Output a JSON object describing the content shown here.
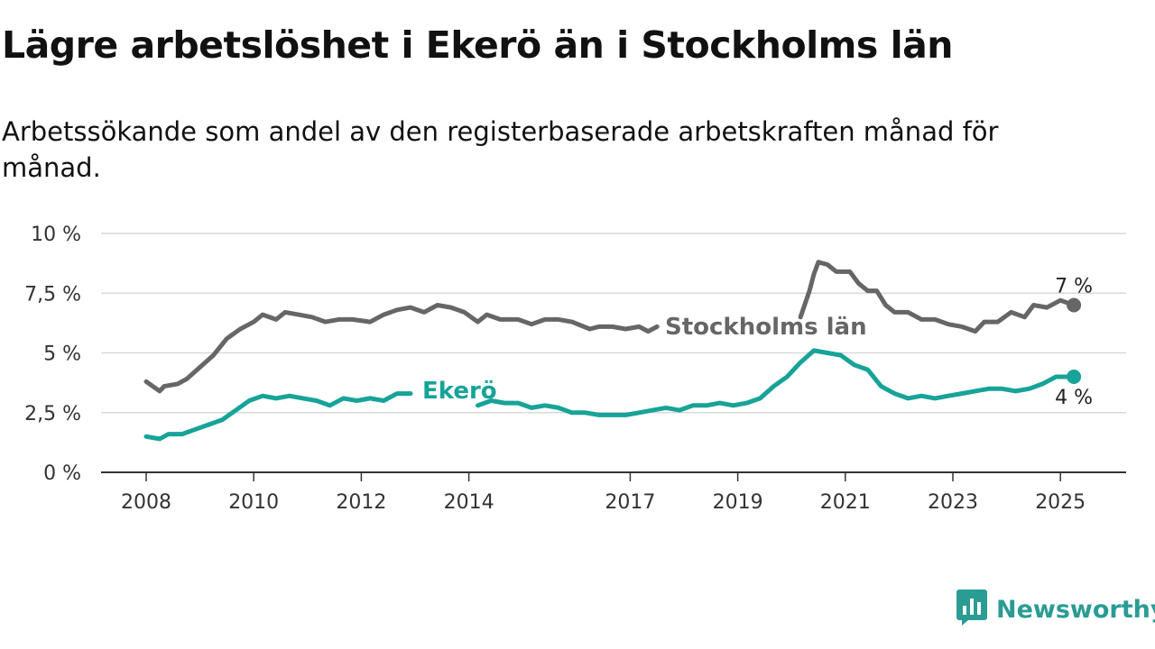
{
  "title": "Lägre arbetslöshet i Ekerö än i Stockholms län",
  "subtitle": "Arbetssökande som andel av den registerbaserade arbetskraften månad för månad.",
  "brand": {
    "name": "Newsworthy",
    "icon": "newsworthy-logo-icon",
    "color": "#2a9c94"
  },
  "chart_data": {
    "type": "line",
    "title": "Lägre arbetslöshet i Ekerö än i Stockholms län",
    "subtitle": "Arbetssökande som andel av den registerbaserade arbetskraften månad för månad.",
    "xlabel": "",
    "ylabel": "",
    "ylim": [
      0,
      10
    ],
    "xlim": [
      "2008-01",
      "2025-12"
    ],
    "grid": true,
    "legend": "inline",
    "x_ticks": [
      "2008",
      "2010",
      "2012",
      "2014",
      "2017",
      "2019",
      "2021",
      "2023",
      "2025"
    ],
    "y_ticks": [
      {
        "value": 0,
        "label": "0 %"
      },
      {
        "value": 2.5,
        "label": "2,5 %"
      },
      {
        "value": 5,
        "label": "5 %"
      },
      {
        "value": 7.5,
        "label": "7,5 %"
      },
      {
        "value": 10,
        "label": "10 %"
      }
    ],
    "series": [
      {
        "name": "Stockholms län",
        "color": "#666666",
        "end_label": "7 %",
        "points": [
          [
            "2008-01",
            3.8
          ],
          [
            "2008-04",
            3.4
          ],
          [
            "2008-05",
            3.6
          ],
          [
            "2008-08",
            3.7
          ],
          [
            "2008-10",
            3.9
          ],
          [
            "2009-01",
            4.4
          ],
          [
            "2009-04",
            4.9
          ],
          [
            "2009-07",
            5.6
          ],
          [
            "2009-10",
            6.0
          ],
          [
            "2010-01",
            6.3
          ],
          [
            "2010-03",
            6.6
          ],
          [
            "2010-06",
            6.4
          ],
          [
            "2010-08",
            6.7
          ],
          [
            "2010-11",
            6.6
          ],
          [
            "2011-02",
            6.5
          ],
          [
            "2011-05",
            6.3
          ],
          [
            "2011-08",
            6.4
          ],
          [
            "2011-11",
            6.4
          ],
          [
            "2012-03",
            6.3
          ],
          [
            "2012-06",
            6.6
          ],
          [
            "2012-09",
            6.8
          ],
          [
            "2012-12",
            6.9
          ],
          [
            "2013-03",
            6.7
          ],
          [
            "2013-06",
            7.0
          ],
          [
            "2013-09",
            6.9
          ],
          [
            "2013-12",
            6.7
          ],
          [
            "2014-03",
            6.3
          ],
          [
            "2014-05",
            6.6
          ],
          [
            "2014-08",
            6.4
          ],
          [
            "2014-12",
            6.4
          ],
          [
            "2015-03",
            6.2
          ],
          [
            "2015-06",
            6.4
          ],
          [
            "2015-09",
            6.4
          ],
          [
            "2015-12",
            6.3
          ],
          [
            "2016-04",
            6.0
          ],
          [
            "2016-06",
            6.1
          ],
          [
            "2016-09",
            6.1
          ],
          [
            "2016-12",
            6.0
          ],
          [
            "2017-03",
            6.1
          ],
          [
            "2017-05",
            5.9
          ],
          [
            "2017-07",
            6.1
          ]
        ],
        "points_2": [
          [
            "2020-03",
            6.5
          ],
          [
            "2020-05",
            7.6
          ],
          [
            "2020-06",
            8.3
          ],
          [
            "2020-07",
            8.8
          ],
          [
            "2020-09",
            8.7
          ],
          [
            "2020-11",
            8.4
          ],
          [
            "2021-02",
            8.4
          ],
          [
            "2021-04",
            7.9
          ],
          [
            "2021-06",
            7.6
          ],
          [
            "2021-08",
            7.6
          ],
          [
            "2021-10",
            7.0
          ],
          [
            "2021-12",
            6.7
          ],
          [
            "2022-03",
            6.7
          ],
          [
            "2022-06",
            6.4
          ],
          [
            "2022-09",
            6.4
          ],
          [
            "2022-12",
            6.2
          ],
          [
            "2023-03",
            6.1
          ],
          [
            "2023-06",
            5.9
          ],
          [
            "2023-08",
            6.3
          ],
          [
            "2023-11",
            6.3
          ],
          [
            "2024-02",
            6.7
          ],
          [
            "2024-05",
            6.5
          ],
          [
            "2024-07",
            7.0
          ],
          [
            "2024-10",
            6.9
          ],
          [
            "2025-01",
            7.2
          ],
          [
            "2025-04",
            7.0
          ]
        ]
      },
      {
        "name": "Ekerö",
        "color": "#17a398",
        "end_label": "4 %",
        "points": [
          [
            "2008-01",
            1.5
          ],
          [
            "2008-04",
            1.4
          ],
          [
            "2008-06",
            1.6
          ],
          [
            "2008-09",
            1.6
          ],
          [
            "2008-12",
            1.8
          ],
          [
            "2009-03",
            2.0
          ],
          [
            "2009-06",
            2.2
          ],
          [
            "2009-09",
            2.6
          ],
          [
            "2009-12",
            3.0
          ],
          [
            "2010-03",
            3.2
          ],
          [
            "2010-06",
            3.1
          ],
          [
            "2010-09",
            3.2
          ],
          [
            "2010-12",
            3.1
          ],
          [
            "2011-03",
            3.0
          ],
          [
            "2011-06",
            2.8
          ],
          [
            "2011-09",
            3.1
          ],
          [
            "2011-12",
            3.0
          ],
          [
            "2012-03",
            3.1
          ],
          [
            "2012-06",
            3.0
          ],
          [
            "2012-09",
            3.3
          ],
          [
            "2012-12",
            3.3
          ]
        ],
        "points_2": [
          [
            "2014-03",
            2.8
          ],
          [
            "2014-06",
            3.0
          ],
          [
            "2014-09",
            2.9
          ],
          [
            "2014-12",
            2.9
          ],
          [
            "2015-03",
            2.7
          ],
          [
            "2015-06",
            2.8
          ],
          [
            "2015-09",
            2.7
          ],
          [
            "2015-12",
            2.5
          ],
          [
            "2016-03",
            2.5
          ],
          [
            "2016-06",
            2.4
          ],
          [
            "2016-09",
            2.4
          ],
          [
            "2016-12",
            2.4
          ],
          [
            "2017-03",
            2.5
          ],
          [
            "2017-06",
            2.6
          ],
          [
            "2017-09",
            2.7
          ],
          [
            "2017-12",
            2.6
          ],
          [
            "2018-03",
            2.8
          ],
          [
            "2018-06",
            2.8
          ],
          [
            "2018-09",
            2.9
          ],
          [
            "2018-12",
            2.8
          ],
          [
            "2019-03",
            2.9
          ],
          [
            "2019-06",
            3.1
          ],
          [
            "2019-09",
            3.6
          ],
          [
            "2019-12",
            4.0
          ],
          [
            "2020-03",
            4.6
          ],
          [
            "2020-06",
            5.1
          ],
          [
            "2020-09",
            5.0
          ],
          [
            "2020-12",
            4.9
          ],
          [
            "2021-03",
            4.5
          ],
          [
            "2021-06",
            4.3
          ],
          [
            "2021-09",
            3.6
          ],
          [
            "2021-12",
            3.3
          ],
          [
            "2022-03",
            3.1
          ],
          [
            "2022-06",
            3.2
          ],
          [
            "2022-09",
            3.1
          ],
          [
            "2022-12",
            3.2
          ],
          [
            "2023-03",
            3.3
          ],
          [
            "2023-06",
            3.4
          ],
          [
            "2023-09",
            3.5
          ],
          [
            "2023-12",
            3.5
          ],
          [
            "2024-03",
            3.4
          ],
          [
            "2024-06",
            3.5
          ],
          [
            "2024-09",
            3.7
          ],
          [
            "2024-12",
            4.0
          ],
          [
            "2025-04",
            4.0
          ]
        ]
      }
    ]
  }
}
